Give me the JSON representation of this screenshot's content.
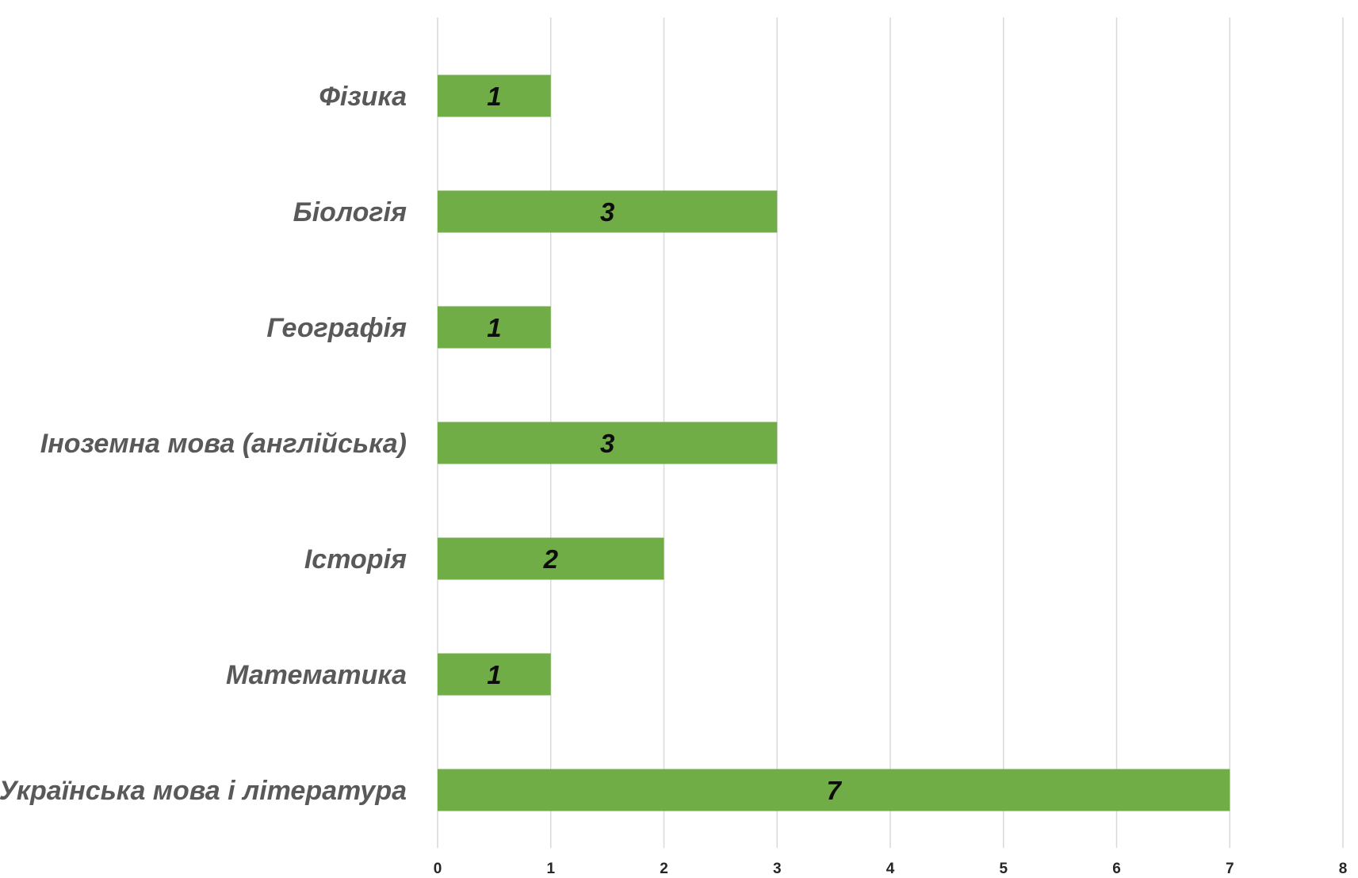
{
  "chart_data": {
    "type": "bar",
    "orientation": "horizontal",
    "categories": [
      "Фізика",
      "Біологія",
      "Географія",
      "Іноземна мова (англійська)",
      "Історія",
      "Математика",
      "Українська мова і література"
    ],
    "values": [
      1,
      3,
      1,
      3,
      2,
      1,
      7
    ],
    "xlim": [
      0,
      8
    ],
    "xticks": [
      "0",
      "1",
      "2",
      "3",
      "4",
      "5",
      "6",
      "7",
      "8"
    ],
    "grid": true,
    "legend": "none",
    "bar_color": "#70ad47",
    "data_labels": [
      "1",
      "3",
      "1",
      "3",
      "2",
      "1",
      "7"
    ],
    "title": "",
    "xlabel": "",
    "ylabel": ""
  }
}
